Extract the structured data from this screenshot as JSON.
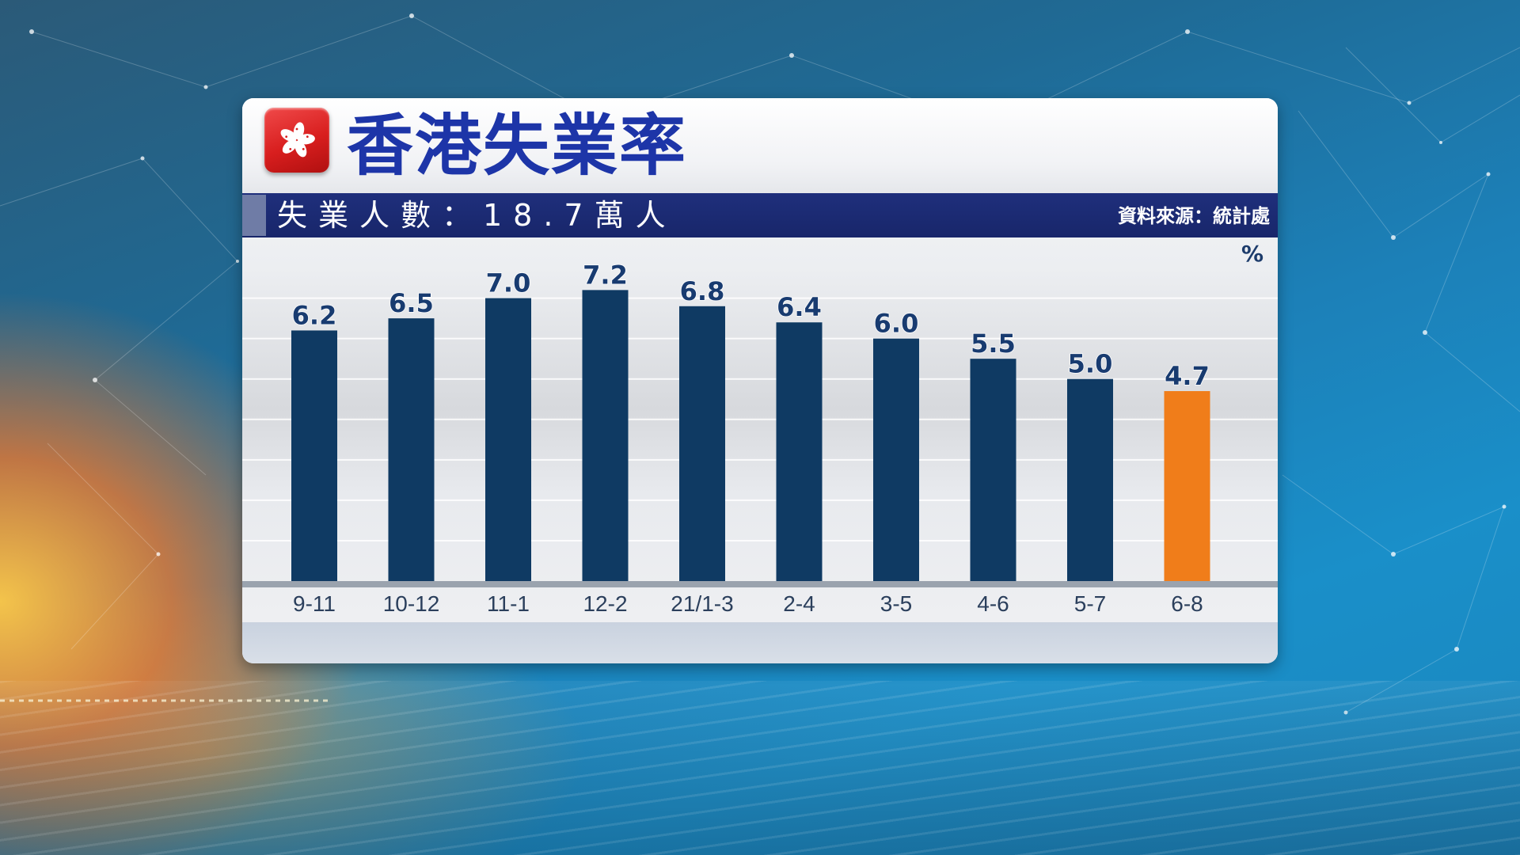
{
  "header": {
    "title": "香港失業率",
    "subtitle": "失業人數：18.7萬人",
    "source": "資料來源：統計處",
    "unit": "%"
  },
  "colors": {
    "bar": "#0f3a63",
    "highlight": "#f07d1a",
    "label": "#183b70",
    "title": "#1d35a8",
    "subbar": "#1f2f7c"
  },
  "chart_data": {
    "type": "bar",
    "title": "香港失業率",
    "ylabel": "%",
    "ylim": [
      0,
      8.5
    ],
    "grid": true,
    "categories": [
      "9-11",
      "10-12",
      "11-1",
      "12-2",
      "21/1-3",
      "2-4",
      "3-5",
      "4-6",
      "5-7",
      "6-8"
    ],
    "values": [
      6.2,
      6.5,
      7.0,
      7.2,
      6.8,
      6.4,
      6.0,
      5.5,
      5.0,
      4.7
    ],
    "data_labels": [
      "6.2",
      "6.5",
      "7.0",
      "7.2",
      "6.8",
      "6.4",
      "6.0",
      "5.5",
      "5.0",
      "4.7"
    ],
    "highlight_index": 9
  }
}
